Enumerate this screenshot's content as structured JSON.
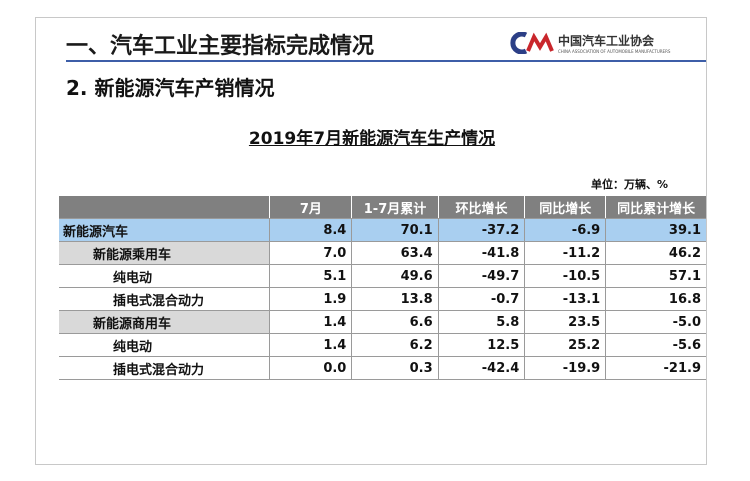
{
  "header": {
    "title": "一、汽车工业主要指标完成情况",
    "logo_cn": "中国汽车工业协会",
    "logo_en": "CHINA ASSOCIATION OF AUTOMOBILE MANUFACTURERS"
  },
  "subtitle": "2. 新能源汽车产销情况",
  "table": {
    "title": "2019年7月新能源汽车生产情况",
    "unit": "单位：万辆、%",
    "columns": [
      "",
      "7月",
      "1-7月累计",
      "环比增长",
      "同比增长",
      "同比累计增长"
    ],
    "rows": [
      [
        "新能源汽车",
        "8.4",
        "70.1",
        "-37.2",
        "-6.9",
        "39.1"
      ],
      [
        "新能源乘用车",
        "7.0",
        "63.4",
        "-41.8",
        "-11.2",
        "46.2"
      ],
      [
        "纯电动",
        "5.1",
        "49.6",
        "-49.7",
        "-10.5",
        "57.1"
      ],
      [
        "插电式混合动力",
        "1.9",
        "13.8",
        "-0.7",
        "-13.1",
        "16.8"
      ],
      [
        "新能源商用车",
        "1.4",
        "6.6",
        "5.8",
        "23.5",
        "-5.0"
      ],
      [
        "纯电动",
        "1.4",
        "6.2",
        "12.5",
        "25.2",
        "-5.6"
      ],
      [
        "插电式混合动力",
        "0.0",
        "0.3",
        "-42.4",
        "-19.9",
        "-21.9"
      ]
    ]
  }
}
